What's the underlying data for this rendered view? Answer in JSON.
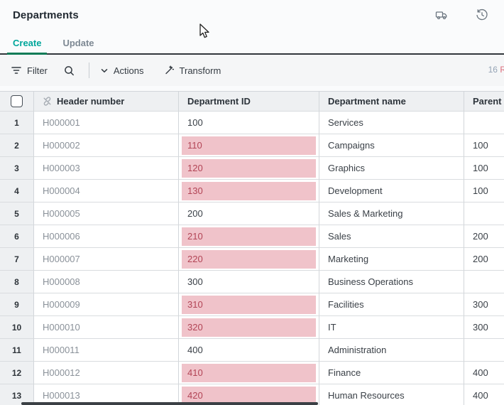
{
  "window": {
    "title": "Departments"
  },
  "tabs": {
    "create": "Create",
    "update": "Update"
  },
  "toolbar": {
    "filter_label": "Filter",
    "actions_label": "Actions",
    "transform_label": "Transform",
    "row_count_number": "16",
    "row_count_suffix": "R"
  },
  "table": {
    "columns": [
      "",
      "Header number",
      "Department ID",
      "Department name",
      "Parent ID"
    ],
    "rows": [
      {
        "num": "1",
        "header_number": "H000001",
        "department_id": "100",
        "id_error": false,
        "department_name": "Services",
        "parent_id": ""
      },
      {
        "num": "2",
        "header_number": "H000002",
        "department_id": "110",
        "id_error": true,
        "department_name": "Campaigns",
        "parent_id": "100"
      },
      {
        "num": "3",
        "header_number": "H000003",
        "department_id": "120",
        "id_error": true,
        "department_name": "Graphics",
        "parent_id": "100"
      },
      {
        "num": "4",
        "header_number": "H000004",
        "department_id": "130",
        "id_error": true,
        "department_name": "Development",
        "parent_id": "100"
      },
      {
        "num": "5",
        "header_number": "H000005",
        "department_id": "200",
        "id_error": false,
        "department_name": "Sales & Marketing",
        "parent_id": ""
      },
      {
        "num": "6",
        "header_number": "H000006",
        "department_id": "210",
        "id_error": true,
        "department_name": "Sales",
        "parent_id": "200"
      },
      {
        "num": "7",
        "header_number": "H000007",
        "department_id": "220",
        "id_error": true,
        "department_name": "Marketing",
        "parent_id": "200"
      },
      {
        "num": "8",
        "header_number": "H000008",
        "department_id": "300",
        "id_error": false,
        "department_name": "Business Operations",
        "parent_id": ""
      },
      {
        "num": "9",
        "header_number": "H000009",
        "department_id": "310",
        "id_error": true,
        "department_name": "Facilities",
        "parent_id": "300"
      },
      {
        "num": "10",
        "header_number": "H000010",
        "department_id": "320",
        "id_error": true,
        "department_name": "IT",
        "parent_id": "300"
      },
      {
        "num": "11",
        "header_number": "H000011",
        "department_id": "400",
        "id_error": false,
        "department_name": "Administration",
        "parent_id": ""
      },
      {
        "num": "12",
        "header_number": "H000012",
        "department_id": "410",
        "id_error": true,
        "department_name": "Finance",
        "parent_id": "400"
      },
      {
        "num": "13",
        "header_number": "H000013",
        "department_id": "420",
        "id_error": true,
        "department_name": "Human Resources",
        "parent_id": "400"
      }
    ]
  },
  "icons": {
    "title_right": [
      "delivery-truck-icon",
      "history-icon"
    ],
    "unmapped_column": "unlink-icon"
  },
  "colors": {
    "accent_teal": "#00a69b",
    "active_tab_underline": "#0e7b57",
    "error_cell_bg": "#f0c3ca",
    "error_cell_text": "#b24556",
    "tab_separator": "#32373c"
  }
}
